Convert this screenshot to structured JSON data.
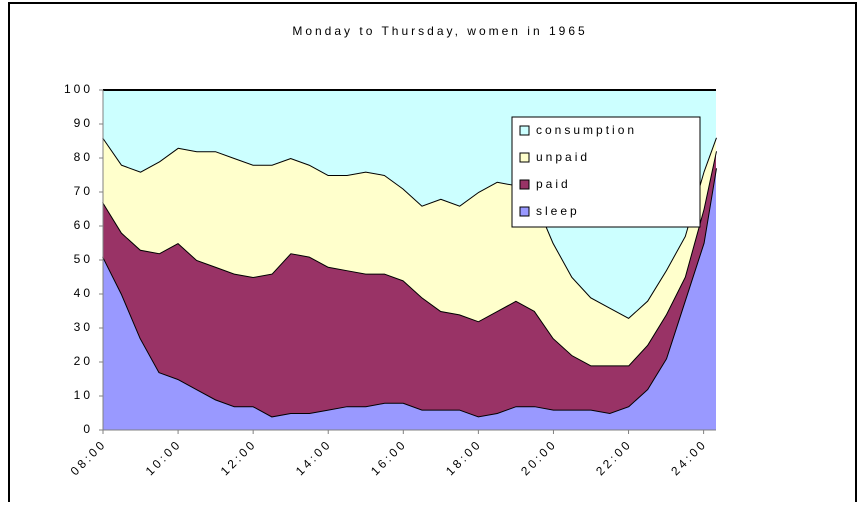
{
  "chart_data": {
    "type": "stacked-area",
    "title": "Monday to Thursday, women in 1965",
    "x": [
      8,
      8.5,
      9,
      9.5,
      10,
      10.5,
      11,
      11.5,
      12,
      12.5,
      13,
      13.5,
      14,
      14.5,
      15,
      15.5,
      16,
      16.5,
      17,
      17.5,
      18,
      18.5,
      19,
      19.5,
      20,
      20.5,
      21,
      21.5,
      22,
      22.5,
      23,
      23.5,
      24,
      24.33
    ],
    "series": [
      {
        "name": "sleep",
        "color": "#9999ff",
        "values": [
          51,
          40,
          27,
          17,
          15,
          12,
          9,
          7,
          7,
          4,
          5,
          5,
          6,
          7,
          7,
          8,
          8,
          6,
          6,
          6,
          4,
          5,
          7,
          7,
          6,
          6,
          6,
          5,
          7,
          12,
          21,
          38,
          55,
          77
        ]
      },
      {
        "name": "paid",
        "color": "#993366",
        "values": [
          16,
          18,
          26,
          35,
          40,
          38,
          39,
          39,
          38,
          42,
          47,
          46,
          42,
          40,
          39,
          38,
          36,
          33,
          29,
          28,
          28,
          30,
          31,
          28,
          21,
          16,
          13,
          14,
          12,
          13,
          13,
          7,
          10,
          5
        ]
      },
      {
        "name": "unpaid",
        "color": "#ffffcc",
        "values": [
          19,
          20,
          23,
          27,
          28,
          32,
          34,
          34,
          33,
          32,
          28,
          27,
          27,
          28,
          30,
          29,
          27,
          27,
          33,
          32,
          38,
          38,
          34,
          33,
          28,
          23,
          20,
          17,
          14,
          13,
          13,
          12,
          11,
          4
        ]
      },
      {
        "name": "consumption",
        "color": "#ccffff",
        "values": [
          14,
          22,
          24,
          21,
          17,
          18,
          18,
          20,
          22,
          22,
          20,
          22,
          25,
          25,
          24,
          25,
          29,
          34,
          32,
          34,
          30,
          27,
          28,
          32,
          45,
          55,
          61,
          64,
          67,
          62,
          53,
          43,
          24,
          14
        ]
      }
    ],
    "xlim": [
      8,
      24.33
    ],
    "xticks": [
      {
        "value": 8,
        "label": "08:00"
      },
      {
        "value": 10,
        "label": "10:00"
      },
      {
        "value": 12,
        "label": "12:00"
      },
      {
        "value": 14,
        "label": "14:00"
      },
      {
        "value": 16,
        "label": "16:00"
      },
      {
        "value": 18,
        "label": "18:00"
      },
      {
        "value": 20,
        "label": "20:00"
      },
      {
        "value": 22,
        "label": "22:00"
      },
      {
        "value": 24,
        "label": "24:00"
      }
    ],
    "ylim": [
      0,
      100
    ],
    "yticks": [
      0,
      10,
      20,
      30,
      40,
      50,
      60,
      70,
      80,
      90,
      100
    ],
    "legend": "upper right"
  }
}
